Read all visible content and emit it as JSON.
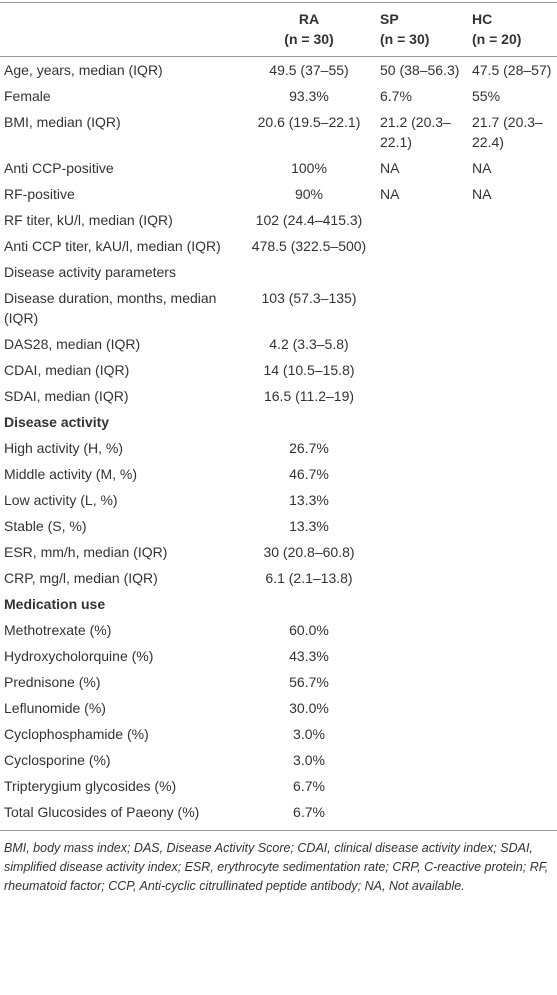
{
  "table": {
    "columns": [
      {
        "name": "RA",
        "n": "(n = 30)"
      },
      {
        "name": "SP",
        "n": "(n = 30)"
      },
      {
        "name": "HC",
        "n": "(n = 20)"
      }
    ],
    "rows": [
      {
        "label": "Age, years, median (IQR)",
        "cells": [
          "49.5 (37–55)",
          "50 (38–56.3)",
          "47.5 (28–57)"
        ]
      },
      {
        "label": "Female",
        "cells": [
          "93.3%",
          "6.7%",
          "55%"
        ]
      },
      {
        "label": "BMI, median (IQR)",
        "cells": [
          "20.6 (19.5–22.1)",
          "21.2 (20.3–22.1)",
          "21.7 (20.3–22.4)"
        ]
      },
      {
        "label": "Anti CCP-positive",
        "cells": [
          "100%",
          "NA",
          "NA"
        ]
      },
      {
        "label": "RF-positive",
        "cells": [
          "90%",
          "NA",
          "NA"
        ]
      },
      {
        "label": "RF titer, kU/l, median (IQR)",
        "cells": [
          "102 (24.4–415.3)"
        ]
      },
      {
        "label": "Anti CCP titer, kAU/l, median (IQR)",
        "cells": [
          "478.5 (322.5–500)"
        ]
      },
      {
        "label": "Disease activity parameters"
      },
      {
        "label": "Disease duration, months, median (IQR)",
        "cells": [
          "103 (57.3–135)"
        ]
      },
      {
        "label": "DAS28, median (IQR)",
        "cells": [
          "4.2 (3.3–5.8)"
        ]
      },
      {
        "label": "CDAI, median (IQR)",
        "cells": [
          "14 (10.5–15.8)"
        ]
      },
      {
        "label": "SDAI, median (IQR)",
        "cells": [
          "16.5 (11.2–19)"
        ]
      },
      {
        "label": "Disease activity",
        "section": true
      },
      {
        "label": "High activity (H, %)",
        "cells": [
          "26.7%"
        ]
      },
      {
        "label": "Middle activity (M, %)",
        "cells": [
          "46.7%"
        ]
      },
      {
        "label": "Low activity (L, %)",
        "cells": [
          "13.3%"
        ]
      },
      {
        "label": "Stable (S, %)",
        "cells": [
          "13.3%"
        ]
      },
      {
        "label": "ESR, mm/h, median (IQR)",
        "cells": [
          "30 (20.8–60.8)"
        ]
      },
      {
        "label": "CRP, mg/l, median (IQR)",
        "cells": [
          "6.1 (2.1–13.8)"
        ]
      },
      {
        "label": "Medication use",
        "section": true
      },
      {
        "label": "Methotrexate (%)",
        "cells": [
          "60.0%"
        ]
      },
      {
        "label": "Hydroxycholorquine (%)",
        "cells": [
          "43.3%"
        ]
      },
      {
        "label": "Prednisone (%)",
        "cells": [
          "56.7%"
        ]
      },
      {
        "label": "Leflunomide (%)",
        "cells": [
          "30.0%"
        ]
      },
      {
        "label": "Cyclophosphamide (%)",
        "cells": [
          "3.0%"
        ]
      },
      {
        "label": "Cyclosporine (%)",
        "cells": [
          "3.0%"
        ]
      },
      {
        "label": "Tripterygium glycosides (%)",
        "cells": [
          "6.7%"
        ]
      },
      {
        "label": "Total Glucosides of Paeony (%)",
        "cells": [
          "6.7%"
        ]
      }
    ],
    "footnote": "BMI, body mass index; DAS, Disease Activity Score; CDAI, clinical disease activity index; SDAI, simplified disease activity index; ESR, erythrocyte sedimentation rate; CRP, C-reactive protein; RF, rheumatoid factor; CCP, Anti-cyclic citrullinated peptide antibody; NA, Not available."
  }
}
